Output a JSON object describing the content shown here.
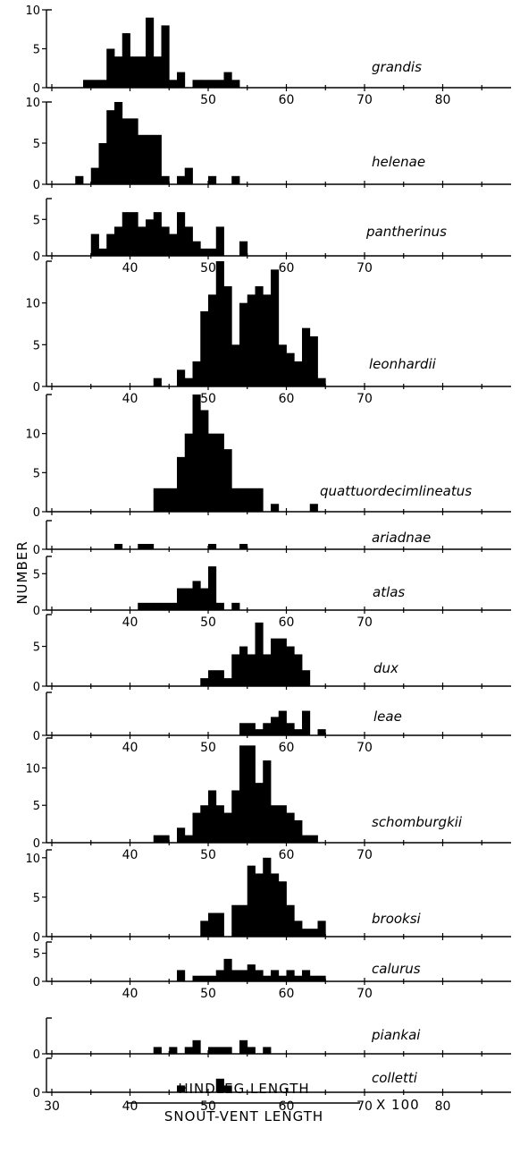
{
  "chart_data": {
    "type": "bar",
    "xlabel_numerator": "HINDLEG LENGTH",
    "xlabel_denominator": "SNOUT-VENT LENGTH",
    "xlabel_multiplier": "X 100",
    "ylabel": "NUMBER",
    "bin_width": 1,
    "xlim": [
      30,
      88
    ],
    "x_tick_labels": [
      "30",
      "40",
      "50",
      "60",
      "70",
      "80"
    ],
    "panels": [
      {
        "name": "grandis",
        "ylim": [
          0,
          10
        ],
        "y_ticks": [
          "0",
          "5",
          "10"
        ],
        "x_tick_labels_below": [
          "50",
          "60",
          "70",
          "80"
        ],
        "bins": [
          [
            34,
            1
          ],
          [
            35,
            1
          ],
          [
            36,
            1
          ],
          [
            37,
            5
          ],
          [
            38,
            4
          ],
          [
            39,
            7
          ],
          [
            40,
            4
          ],
          [
            41,
            4
          ],
          [
            42,
            9
          ],
          [
            43,
            4
          ],
          [
            44,
            8
          ],
          [
            45,
            1
          ],
          [
            46,
            2
          ],
          [
            48,
            1
          ],
          [
            49,
            1
          ],
          [
            50,
            1
          ],
          [
            51,
            1
          ],
          [
            52,
            2
          ],
          [
            53,
            1
          ]
        ]
      },
      {
        "name": "helenae",
        "ylim": [
          0,
          10
        ],
        "y_ticks": [
          "0",
          "5",
          "10"
        ],
        "x_tick_labels_below": [],
        "bins": [
          [
            33,
            1
          ],
          [
            35,
            2
          ],
          [
            36,
            5
          ],
          [
            37,
            9
          ],
          [
            38,
            10
          ],
          [
            39,
            8
          ],
          [
            40,
            8
          ],
          [
            41,
            6
          ],
          [
            42,
            6
          ],
          [
            43,
            6
          ],
          [
            44,
            1
          ],
          [
            46,
            1
          ],
          [
            47,
            2
          ],
          [
            50,
            1
          ],
          [
            53,
            1
          ]
        ]
      },
      {
        "name": "pantherinus",
        "ylim": [
          0,
          7
        ],
        "y_ticks": [
          "0",
          "5"
        ],
        "x_tick_labels_below": [
          "40",
          "50",
          "60",
          "70"
        ],
        "bins": [
          [
            35,
            3
          ],
          [
            36,
            1
          ],
          [
            37,
            3
          ],
          [
            38,
            4
          ],
          [
            39,
            6
          ],
          [
            40,
            6
          ],
          [
            41,
            4
          ],
          [
            42,
            5
          ],
          [
            43,
            6
          ],
          [
            44,
            4
          ],
          [
            45,
            3
          ],
          [
            46,
            6
          ],
          [
            47,
            4
          ],
          [
            48,
            2
          ],
          [
            49,
            1
          ],
          [
            50,
            1
          ],
          [
            51,
            4
          ],
          [
            54,
            2
          ]
        ]
      },
      {
        "name": "leonhardii",
        "ylim": [
          0,
          15
        ],
        "y_ticks": [
          "0",
          "5",
          "10"
        ],
        "x_tick_labels_below": [
          "40",
          "50",
          "60",
          "70"
        ],
        "bins": [
          [
            43,
            1
          ],
          [
            46,
            2
          ],
          [
            47,
            1
          ],
          [
            48,
            3
          ],
          [
            49,
            9
          ],
          [
            50,
            11
          ],
          [
            51,
            15
          ],
          [
            52,
            12
          ],
          [
            53,
            5
          ],
          [
            54,
            10
          ],
          [
            55,
            11
          ],
          [
            56,
            12
          ],
          [
            57,
            11
          ],
          [
            58,
            14
          ],
          [
            59,
            5
          ],
          [
            60,
            4
          ],
          [
            61,
            3
          ],
          [
            62,
            7
          ],
          [
            63,
            6
          ],
          [
            64,
            1
          ]
        ]
      },
      {
        "name": "quattuordecimlineatus",
        "ylim": [
          0,
          15
        ],
        "y_ticks": [
          "0",
          "5",
          "10"
        ],
        "x_tick_labels_below": [],
        "bins": [
          [
            43,
            3
          ],
          [
            44,
            3
          ],
          [
            45,
            3
          ],
          [
            46,
            7
          ],
          [
            47,
            10
          ],
          [
            48,
            15
          ],
          [
            49,
            13
          ],
          [
            50,
            10
          ],
          [
            51,
            10
          ],
          [
            52,
            8
          ],
          [
            53,
            3
          ],
          [
            54,
            3
          ],
          [
            55,
            3
          ],
          [
            56,
            3
          ],
          [
            58,
            1
          ],
          [
            63,
            1
          ]
        ]
      },
      {
        "name": "ariadnae",
        "ylim": [
          0,
          5
        ],
        "y_ticks": [
          "0"
        ],
        "x_tick_labels_below": [],
        "bins": [
          [
            38,
            1
          ],
          [
            41,
            1
          ],
          [
            42,
            1
          ],
          [
            50,
            1
          ],
          [
            54,
            1
          ]
        ]
      },
      {
        "name": "atlas",
        "ylim": [
          0,
          7
        ],
        "y_ticks": [
          "0",
          "5"
        ],
        "x_tick_labels_below": [
          "40",
          "50",
          "60",
          "70"
        ],
        "bins": [
          [
            41,
            1
          ],
          [
            42,
            1
          ],
          [
            43,
            1
          ],
          [
            44,
            1
          ],
          [
            45,
            1
          ],
          [
            46,
            3
          ],
          [
            47,
            3
          ],
          [
            48,
            4
          ],
          [
            49,
            3
          ],
          [
            50,
            6
          ],
          [
            51,
            1
          ],
          [
            53,
            1
          ]
        ]
      },
      {
        "name": "dux",
        "ylim": [
          0,
          9
        ],
        "y_ticks": [
          "0",
          "5"
        ],
        "x_tick_labels_below": [],
        "bins": [
          [
            49,
            1
          ],
          [
            50,
            2
          ],
          [
            51,
            2
          ],
          [
            52,
            1
          ],
          [
            53,
            4
          ],
          [
            54,
            5
          ],
          [
            55,
            4
          ],
          [
            56,
            8
          ],
          [
            57,
            4
          ],
          [
            58,
            6
          ],
          [
            59,
            6
          ],
          [
            60,
            5
          ],
          [
            61,
            4
          ],
          [
            62,
            2
          ]
        ]
      },
      {
        "name": "leae",
        "ylim": [
          0,
          7
        ],
        "y_ticks": [
          "0"
        ],
        "x_tick_labels_below": [
          "40",
          "50",
          "60",
          "70"
        ],
        "bins": [
          [
            54,
            2
          ],
          [
            55,
            2
          ],
          [
            56,
            1
          ],
          [
            57,
            2
          ],
          [
            58,
            3
          ],
          [
            59,
            4
          ],
          [
            60,
            2
          ],
          [
            61,
            1
          ],
          [
            62,
            4
          ],
          [
            64,
            1
          ]
        ]
      },
      {
        "name": "schomburgkii",
        "ylim": [
          0,
          14
        ],
        "y_ticks": [
          "0",
          "5",
          "10"
        ],
        "x_tick_labels_below": [
          "40",
          "50",
          "60",
          "70"
        ],
        "bins": [
          [
            43,
            1
          ],
          [
            44,
            1
          ],
          [
            46,
            2
          ],
          [
            47,
            1
          ],
          [
            48,
            4
          ],
          [
            49,
            5
          ],
          [
            50,
            7
          ],
          [
            51,
            5
          ],
          [
            52,
            4
          ],
          [
            53,
            7
          ],
          [
            54,
            13
          ],
          [
            55,
            13
          ],
          [
            56,
            8
          ],
          [
            57,
            11
          ],
          [
            58,
            5
          ],
          [
            59,
            5
          ],
          [
            60,
            4
          ],
          [
            61,
            3
          ],
          [
            62,
            1
          ],
          [
            63,
            1
          ]
        ]
      },
      {
        "name": "brooksi",
        "ylim": [
          0,
          11
        ],
        "y_ticks": [
          "0",
          "5",
          "10"
        ],
        "x_tick_labels_below": [],
        "bins": [
          [
            49,
            2
          ],
          [
            50,
            3
          ],
          [
            51,
            3
          ],
          [
            53,
            4
          ],
          [
            54,
            4
          ],
          [
            55,
            9
          ],
          [
            56,
            8
          ],
          [
            57,
            10
          ],
          [
            58,
            8
          ],
          [
            59,
            7
          ],
          [
            60,
            4
          ],
          [
            61,
            2
          ],
          [
            62,
            1
          ],
          [
            63,
            1
          ],
          [
            64,
            2
          ]
        ]
      },
      {
        "name": "calurus",
        "ylim": [
          0,
          7
        ],
        "y_ticks": [
          "0",
          "5"
        ],
        "x_tick_labels_below": [
          "40",
          "50",
          "60",
          "70"
        ],
        "bins": [
          [
            46,
            2
          ],
          [
            48,
            1
          ],
          [
            49,
            1
          ],
          [
            50,
            1
          ],
          [
            51,
            2
          ],
          [
            52,
            4
          ],
          [
            53,
            2
          ],
          [
            54,
            2
          ],
          [
            55,
            3
          ],
          [
            56,
            2
          ],
          [
            57,
            1
          ],
          [
            58,
            2
          ],
          [
            59,
            1
          ],
          [
            60,
            2
          ],
          [
            61,
            1
          ],
          [
            62,
            2
          ],
          [
            63,
            1
          ],
          [
            64,
            1
          ]
        ]
      },
      {
        "name": "piankai",
        "ylim": [
          0,
          5
        ],
        "y_ticks": [
          "0"
        ],
        "x_tick_labels_below": [],
        "bins": [
          [
            43,
            1
          ],
          [
            45,
            1
          ],
          [
            47,
            1
          ],
          [
            48,
            2
          ],
          [
            50,
            1
          ],
          [
            51,
            1
          ],
          [
            52,
            1
          ],
          [
            54,
            2
          ],
          [
            55,
            1
          ],
          [
            57,
            1
          ]
        ]
      },
      {
        "name": "colletti",
        "ylim": [
          0,
          5
        ],
        "y_ticks": [
          "0"
        ],
        "x_tick_labels_below": [
          "30",
          "40",
          "50",
          "60",
          "70",
          "80"
        ],
        "bins": [
          [
            46,
            1
          ],
          [
            51,
            2
          ],
          [
            52,
            1
          ]
        ]
      }
    ]
  }
}
